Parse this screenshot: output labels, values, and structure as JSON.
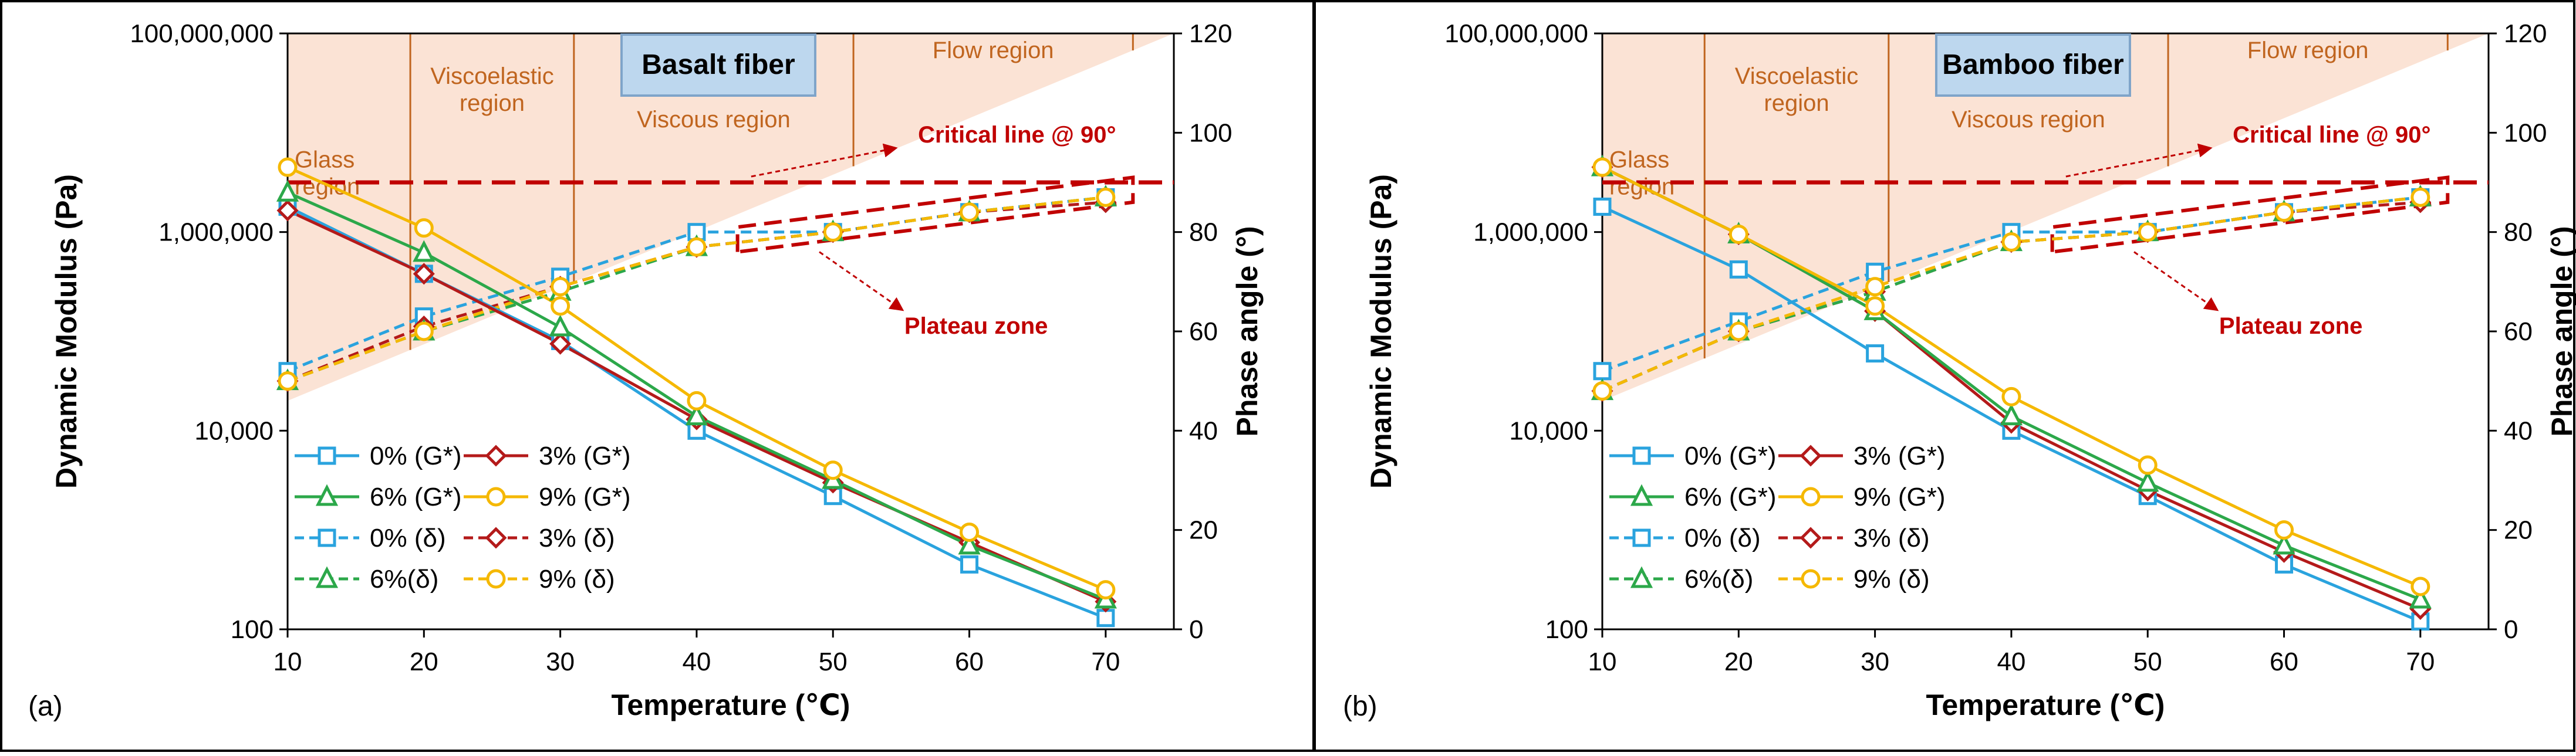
{
  "colors": {
    "g0": "#2aa3de",
    "g6": "#2ca84a",
    "g3": "#b41a1a",
    "g9": "#f5b800",
    "annotation": "#c00000",
    "region_text": "#c0651f",
    "region_fill": "#fbe3d5",
    "title_fill": "#bdd7ee",
    "title_stroke": "#7fa4c9"
  },
  "chart_data": [
    {
      "panel_label": "(a)",
      "type": "line",
      "title": "Basalt fiber",
      "xlabel": "Temperature (℃)",
      "ylabel_left": "Dynamic Modulus (Pa)",
      "ylabel_right": "Phase angle (°)",
      "x_ticks": [
        "10",
        "20",
        "30",
        "40",
        "50",
        "60",
        "70"
      ],
      "y_left_ticks": [
        "100",
        "10,000",
        "1,000,000",
        "100,000,000"
      ],
      "y_right_ticks": [
        "0",
        "20",
        "40",
        "60",
        "80",
        "100",
        "120"
      ],
      "xlim": [
        10,
        75
      ],
      "ylim_left_log": [
        100,
        100000000
      ],
      "ylim_right": [
        0,
        120
      ],
      "x": [
        10,
        20,
        30,
        40,
        50,
        60,
        70
      ],
      "modulus_series": [
        {
          "name": "0% (G*)",
          "key": "g0",
          "marker": "square",
          "values": [
            1800000,
            380000,
            80000,
            10000,
            2200,
            450,
            130
          ]
        },
        {
          "name": "3% (G*)",
          "key": "g3",
          "marker": "diamond",
          "values": [
            1650000,
            380000,
            75000,
            13000,
            3000,
            750,
            190
          ]
        },
        {
          "name": "6% (G*)",
          "key": "g6",
          "marker": "triangle",
          "values": [
            2500000,
            620000,
            110000,
            14000,
            3200,
            700,
            200
          ]
        },
        {
          "name": "9% (G*)",
          "key": "g9",
          "marker": "circle",
          "values": [
            4500000,
            1100000,
            180000,
            20000,
            4000,
            950,
            250
          ]
        }
      ],
      "phase_series": [
        {
          "name": "0% (δ)",
          "key": "g0",
          "marker": "square",
          "values": [
            52,
            63,
            71,
            80,
            80,
            84,
            87
          ]
        },
        {
          "name": "3% (δ)",
          "key": "g3",
          "marker": "diamond",
          "values": [
            50,
            61,
            69,
            77,
            80,
            84,
            86
          ]
        },
        {
          "name": "6%(δ)",
          "key": "g6",
          "marker": "triangle",
          "values": [
            50,
            60,
            68,
            77,
            80,
            84,
            87
          ]
        },
        {
          "name": "9% (δ)",
          "key": "g9",
          "marker": "circle",
          "values": [
            50,
            60,
            69,
            77,
            80,
            84,
            87
          ]
        }
      ],
      "legend_order": [
        "0% (G*)",
        "3% (G*)",
        "6% (G*)",
        "9% (G*)",
        "0% (δ)",
        "3% (δ)",
        "6%(δ)",
        "9% (δ)"
      ],
      "regions": {
        "glass": "Glass region",
        "viscoelastic": "Viscoelastic region",
        "viscous": "Viscous region",
        "flow": "Flow region"
      },
      "region_boundaries_x": [
        19,
        31,
        51.5,
        72
      ],
      "critical_line": {
        "label": "Critical line @ 90°",
        "value": 90
      },
      "plateau_label": "Plateau zone",
      "plateau_range": {
        "x": [
          43,
          72
        ],
        "y": [
          76,
          91
        ]
      }
    },
    {
      "panel_label": "(b)",
      "type": "line",
      "title": "Bamboo fiber",
      "xlabel": "Temperature (℃)",
      "ylabel_left": "Dynamic Modulus (Pa)",
      "ylabel_right": "Phase angle (°)",
      "x_ticks": [
        "10",
        "20",
        "30",
        "40",
        "50",
        "60",
        "70"
      ],
      "y_left_ticks": [
        "100",
        "10,000",
        "1,000,000",
        "100,000,000"
      ],
      "y_right_ticks": [
        "0",
        "20",
        "40",
        "60",
        "80",
        "100",
        "120"
      ],
      "xlim": [
        10,
        75
      ],
      "ylim_left_log": [
        100,
        100000000
      ],
      "ylim_right": [
        0,
        120
      ],
      "x": [
        10,
        20,
        30,
        40,
        50,
        60,
        70
      ],
      "modulus_series": [
        {
          "name": "0% (G*)",
          "key": "g0",
          "marker": "square",
          "values": [
            1800000,
            420000,
            60000,
            10000,
            2200,
            450,
            120
          ]
        },
        {
          "name": "3% (G*)",
          "key": "g3",
          "marker": "diamond",
          "values": [
            4500000,
            950000,
            160000,
            12000,
            2500,
            600,
            160
          ]
        },
        {
          "name": "6% (G*)",
          "key": "g6",
          "marker": "triangle",
          "values": [
            4500000,
            950000,
            160000,
            14000,
            3000,
            700,
            200
          ]
        },
        {
          "name": "9% (G*)",
          "key": "g9",
          "marker": "circle",
          "values": [
            4500000,
            950000,
            180000,
            22000,
            4500,
            1000,
            270
          ]
        }
      ],
      "phase_series": [
        {
          "name": "0% (δ)",
          "key": "g0",
          "marker": "square",
          "values": [
            52,
            62,
            72,
            80,
            80,
            84,
            87
          ]
        },
        {
          "name": "3% (δ)",
          "key": "g3",
          "marker": "diamond",
          "values": [
            48,
            60,
            68,
            78,
            80,
            84,
            86
          ]
        },
        {
          "name": "6%(δ)",
          "key": "g6",
          "marker": "triangle",
          "values": [
            48,
            60,
            68,
            78,
            80,
            84,
            87
          ]
        },
        {
          "name": "9% (δ)",
          "key": "g9",
          "marker": "circle",
          "values": [
            48,
            60,
            69,
            78,
            80,
            84,
            87
          ]
        }
      ],
      "legend_order": [
        "0% (G*)",
        "3% (G*)",
        "6% (G*)",
        "9% (G*)",
        "0% (δ)",
        "3% (δ)",
        "6%(δ)",
        "9% (δ)"
      ],
      "regions": {
        "glass": "Glass region",
        "viscoelastic": "Viscoelastic region",
        "viscous": "Viscous region",
        "flow": "Flow region"
      },
      "region_boundaries_x": [
        17.5,
        31,
        51.5,
        72
      ],
      "critical_line": {
        "label": "Critical line @ 90°",
        "value": 90
      },
      "plateau_label": "Plateau zone",
      "plateau_range": {
        "x": [
          43,
          72
        ],
        "y": [
          76,
          91
        ]
      }
    }
  ]
}
